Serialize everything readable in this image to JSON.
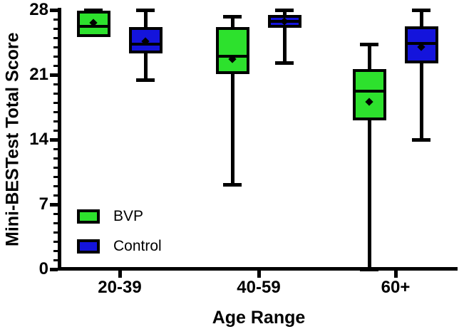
{
  "chart_data": {
    "type": "boxplot",
    "title": "",
    "xlabel": "Age Range",
    "ylabel": "Mini-BESTest Total Score",
    "ylim": [
      0,
      28
    ],
    "y_major_ticks": [
      0,
      7,
      14,
      21,
      28
    ],
    "y_minor_tick_step": 1,
    "grid": false,
    "categories": [
      "20-39",
      "40-59",
      "60+"
    ],
    "legend_position": "bottom-left-inside",
    "legend": [
      {
        "name": "BVP",
        "color": "#2DE12D"
      },
      {
        "name": "Control",
        "color": "#1414DC"
      }
    ],
    "series": [
      {
        "name": "BVP",
        "color": "#2DE12D",
        "boxes": [
          {
            "category": "20-39",
            "min": 25.2,
            "q1": 25.2,
            "median": 26.2,
            "mean": 26.6,
            "q3": 27.8,
            "max": 28
          },
          {
            "category": "40-59",
            "min": 9.1,
            "q1": 21.2,
            "median": 23.0,
            "mean": 22.7,
            "q3": 26.0,
            "max": 27.3
          },
          {
            "category": "60+",
            "min": 0,
            "q1": 16.2,
            "median": 19.2,
            "mean": 18.1,
            "q3": 21.5,
            "max": 24.3
          }
        ]
      },
      {
        "name": "Control",
        "color": "#1414DC",
        "boxes": [
          {
            "category": "20-39",
            "min": 20.4,
            "q1": 23.5,
            "median": 24.3,
            "mean": 24.6,
            "q3": 26.0,
            "max": 28
          },
          {
            "category": "40-59",
            "min": 22.3,
            "q1": 26.2,
            "median": 26.8,
            "mean": 26.8,
            "q3": 27.3,
            "max": 28
          },
          {
            "category": "60+",
            "min": 14.0,
            "q1": 22.4,
            "median": 24.4,
            "mean": 24.0,
            "q3": 26.1,
            "max": 28
          }
        ]
      }
    ],
    "axis_color": "#000000",
    "background_color": "#ffffff"
  }
}
